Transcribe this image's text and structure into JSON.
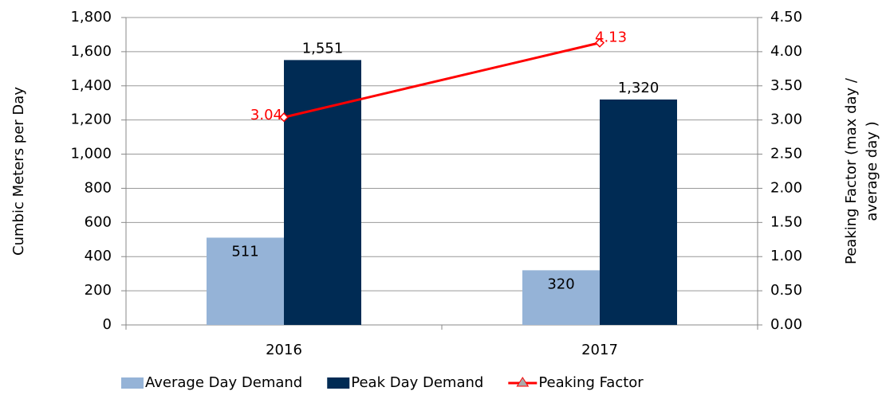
{
  "chart_data": {
    "type": "bar",
    "categories": [
      "2016",
      "2017"
    ],
    "series": [
      {
        "name": "Average Day Demand",
        "color": "#95b3d7",
        "values": [
          511,
          320
        ],
        "value_labels": [
          "511",
          "320"
        ]
      },
      {
        "name": "Peak Day Demand",
        "color": "#002b54",
        "values": [
          1551,
          1320
        ],
        "value_labels": [
          "1,551",
          "1,320"
        ]
      },
      {
        "name": "Peaking Factor",
        "color": "#ff0000",
        "type": "line",
        "axis": "y2",
        "values": [
          3.04,
          4.13
        ],
        "value_labels": [
          "3.04",
          "4.13"
        ]
      }
    ],
    "ylabel": "Cumbic Meters per Day",
    "y2label": [
      "Peaking Factor (max day /",
      "average day )"
    ],
    "ylim": [
      0,
      1800
    ],
    "yticks": [
      0,
      200,
      400,
      600,
      800,
      {
        "value": 1000,
        "label": "1,000"
      },
      {
        "value": 1200,
        "label": "1,200"
      },
      {
        "value": 1400,
        "label": "1,400"
      },
      {
        "value": 1600,
        "label": "1,600"
      },
      {
        "value": 1800,
        "label": "1,800"
      }
    ],
    "y2lim": [
      0,
      4.5
    ],
    "y2ticks": [
      {
        "value": 0,
        "label": "0.00"
      },
      {
        "value": 0.5,
        "label": "0.50"
      },
      {
        "value": 1,
        "label": "1.00"
      },
      {
        "value": 1.5,
        "label": "1.50"
      },
      {
        "value": 2,
        "label": "2.00"
      },
      {
        "value": 2.5,
        "label": "2.50"
      },
      {
        "value": 3,
        "label": "3.00"
      },
      {
        "value": 3.5,
        "label": "3.50"
      },
      {
        "value": 4,
        "label": "4.00"
      },
      {
        "value": 4.5,
        "label": "4.50"
      }
    ],
    "grid": true,
    "legend": "bottom"
  }
}
